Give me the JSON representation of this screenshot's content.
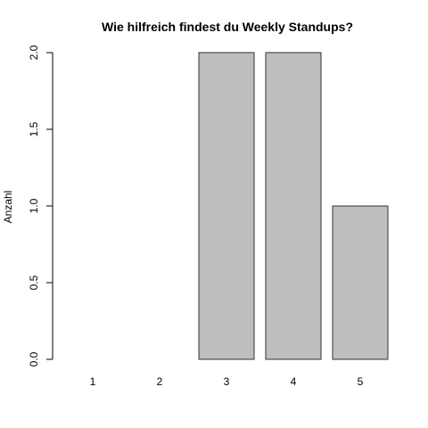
{
  "chart_data": {
    "type": "bar",
    "title": "Wie hilfreich findest du Weekly Standups?",
    "xlabel": "",
    "ylabel": "Anzahl",
    "categories": [
      "1",
      "2",
      "3",
      "4",
      "5"
    ],
    "values": [
      0,
      0,
      2,
      2,
      1
    ],
    "ylim": [
      0,
      2
    ],
    "yticks": [
      0,
      0.5,
      1,
      1.5,
      2
    ],
    "ytick_labels": [
      "0.0",
      "0.5",
      "1.0",
      "1.5",
      "2.0"
    ],
    "grid": false,
    "legend": false,
    "colors": {
      "bar_fill": "#bebebe",
      "bar_stroke": "#333333"
    }
  }
}
